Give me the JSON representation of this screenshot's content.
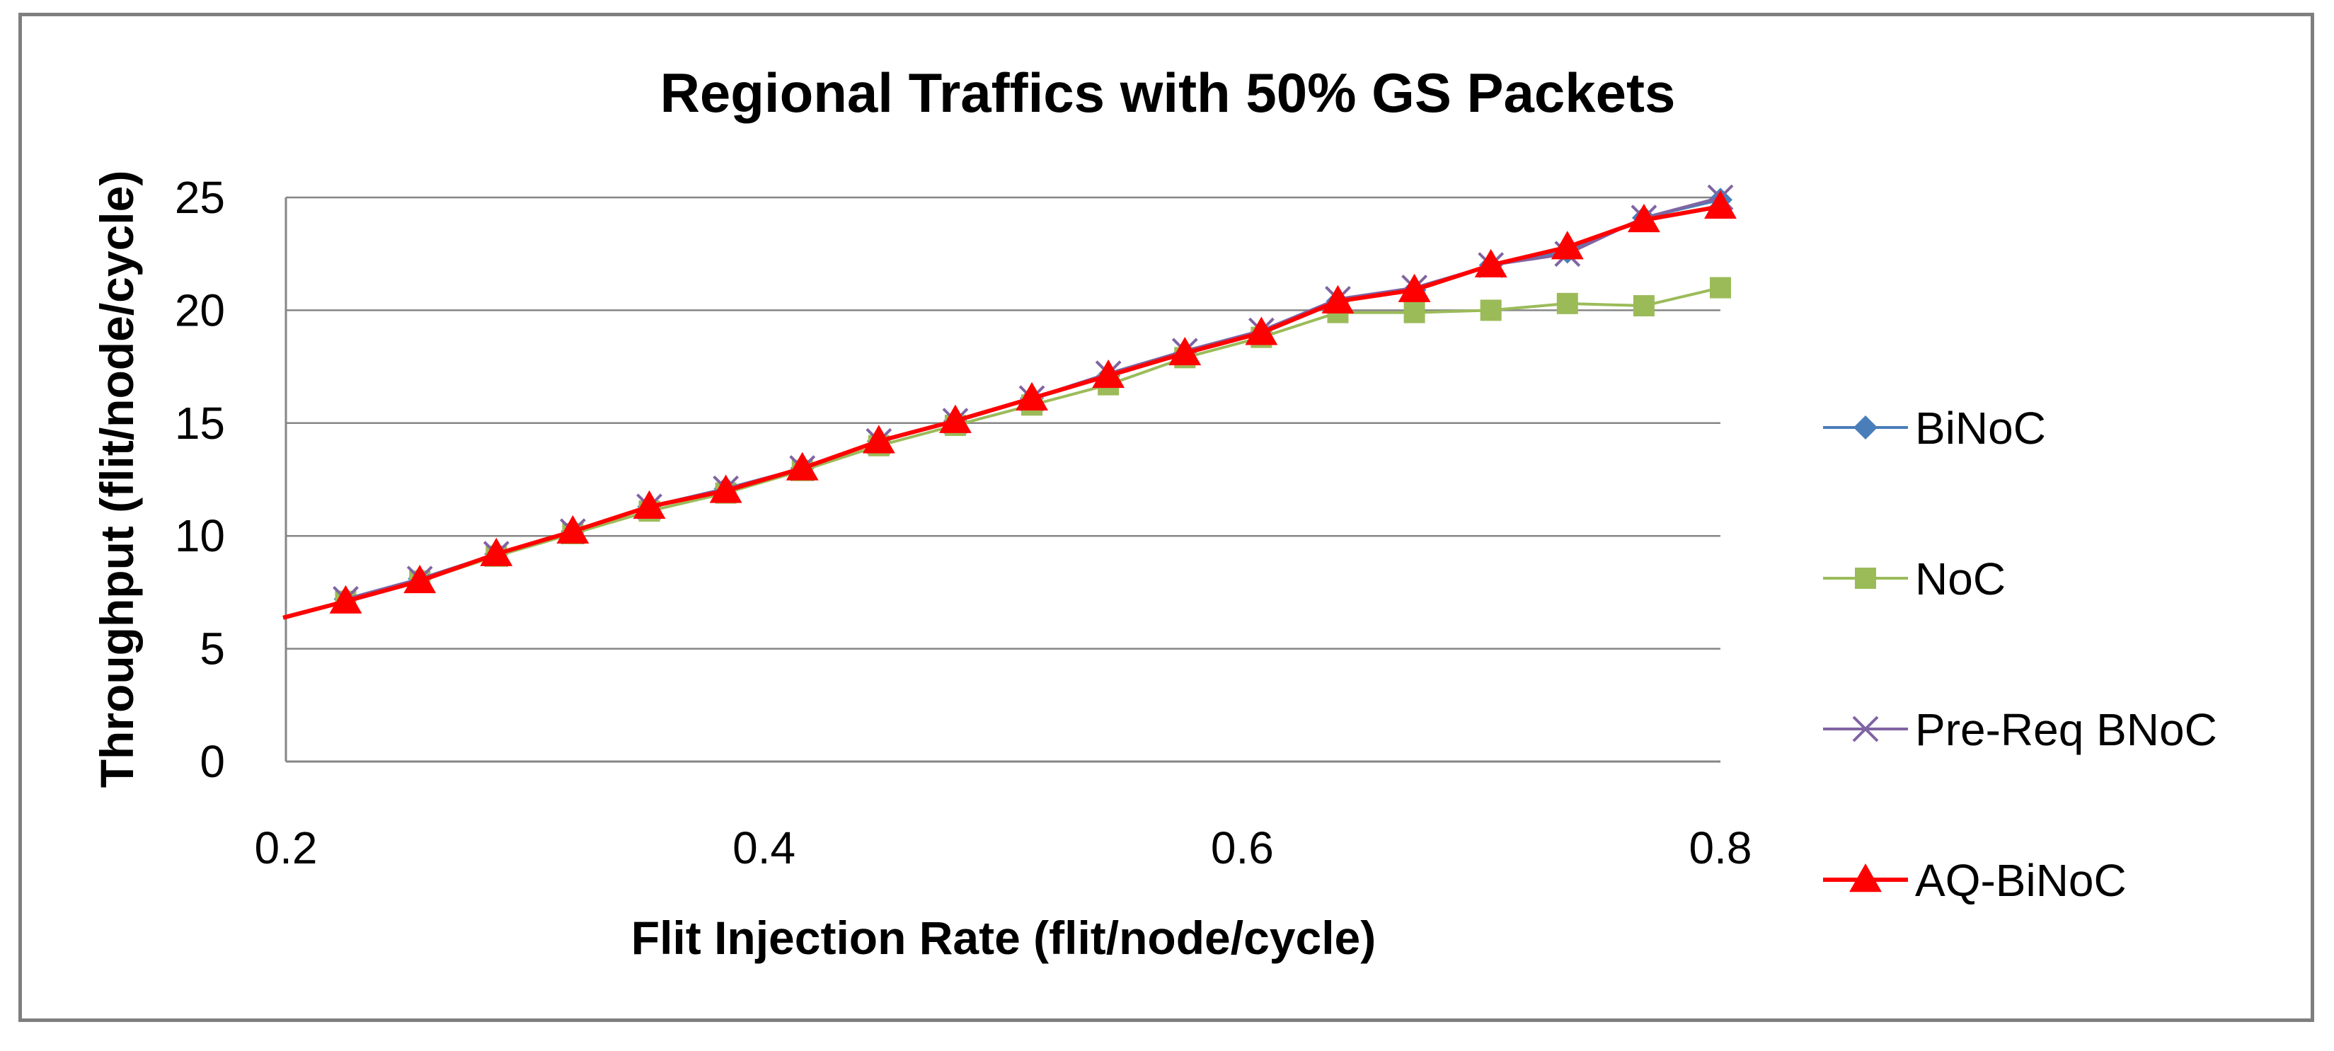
{
  "chart_data": {
    "type": "line",
    "title": "Regional Traffics with 50% GS Packets",
    "xlabel": "Flit Injection Rate (flit/node/cycle)",
    "ylabel": "Throughput (flit/node/cycle)",
    "xlim": [
      0.2,
      0.8
    ],
    "ylim": [
      0,
      25
    ],
    "xticks": [
      "0.2",
      "0.4",
      "0.6",
      "0.8"
    ],
    "xtick_values": [
      0.2,
      0.4,
      0.6,
      0.8
    ],
    "yticks": [
      "0",
      "5",
      "10",
      "15",
      "20",
      "25"
    ],
    "ytick_values": [
      0,
      5,
      10,
      15,
      20,
      25
    ],
    "grid": "horizontal",
    "legend_position": "right",
    "x": [
      0.225,
      0.256,
      0.288,
      0.32,
      0.352,
      0.384,
      0.416,
      0.448,
      0.48,
      0.512,
      0.544,
      0.576,
      0.608,
      0.64,
      0.672,
      0.704,
      0.736,
      0.768,
      0.8
    ],
    "series": [
      {
        "name": "BiNoC",
        "color": "#4a7ebb",
        "marker": "diamond",
        "values": [
          7.2,
          8.1,
          9.2,
          10.2,
          11.3,
          12.1,
          13.0,
          14.2,
          15.1,
          16.1,
          17.1,
          18.1,
          19.0,
          20.4,
          20.9,
          22.0,
          22.6,
          24.1,
          24.9
        ]
      },
      {
        "name": "NoC",
        "color": "#9bbb59",
        "marker": "square",
        "values": [
          7.1,
          8.0,
          9.1,
          10.1,
          11.1,
          11.9,
          12.9,
          14.0,
          14.9,
          15.8,
          16.7,
          17.9,
          18.8,
          19.9,
          19.9,
          20.0,
          20.3,
          20.2,
          21.0
        ]
      },
      {
        "name": "Pre-Req BNoC",
        "color": "#8064a2",
        "marker": "x",
        "values": [
          7.2,
          8.1,
          9.2,
          10.2,
          11.3,
          12.1,
          13.0,
          14.2,
          15.1,
          16.1,
          17.2,
          18.2,
          19.1,
          20.5,
          21.0,
          22.0,
          22.5,
          24.1,
          25.0
        ]
      },
      {
        "name": "AQ-BiNoC",
        "color": "#ff0000",
        "marker": "triangle",
        "values": [
          7.1,
          8.0,
          9.2,
          10.2,
          11.3,
          12.0,
          13.0,
          14.2,
          15.1,
          16.1,
          17.1,
          18.1,
          19.0,
          20.4,
          20.9,
          22.0,
          22.8,
          24.0,
          24.6
        ]
      }
    ]
  }
}
